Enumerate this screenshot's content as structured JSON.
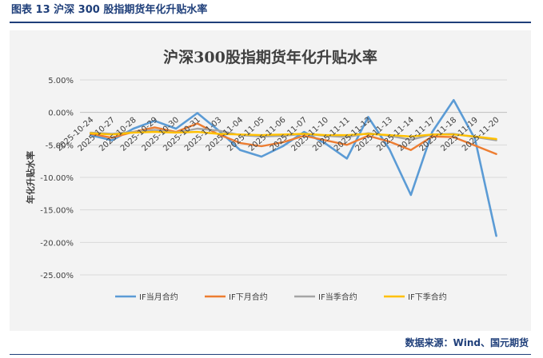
{
  "figure": {
    "caption": "图表 13  沪深 300 股指期货年化升贴水率",
    "source": "数据来源：Wind、国元期货"
  },
  "chart_data": {
    "type": "line",
    "title": "沪深300股指期货年化升贴水率",
    "xlabel": "",
    "ylabel": "年化升贴水率",
    "ylim": [
      -25,
      5
    ],
    "yticks": [
      5,
      0,
      -5,
      -10,
      -15,
      -20,
      -25
    ],
    "ytick_labels": [
      "5.00%",
      "0.00%",
      "-5.00%",
      "-10.00%",
      "-15.00%",
      "-20.00%",
      "-25.00%"
    ],
    "grid": true,
    "legend_position": "bottom",
    "categories": [
      "2025-10-24",
      "2025-10-27",
      "2025-10-28",
      "2025-10-29",
      "2025-10-30",
      "2025-10-31",
      "2025-11-03",
      "2025-11-04",
      "2025-11-05",
      "2025-11-06",
      "2025-11-07",
      "2025-11-10",
      "2025-11-11",
      "2025-11-12",
      "2025-11-13",
      "2025-11-14",
      "2025-11-17",
      "2025-11-18",
      "2025-11-19",
      "2025-11-20"
    ],
    "series": [
      {
        "name": "IF当月合约",
        "color": "#5b9bd5",
        "values": [
          -3.5,
          -4.3,
          -2.5,
          -1.3,
          -2.5,
          -0.1,
          -2.8,
          -5.8,
          -6.8,
          -5.2,
          -3.0,
          -4.8,
          -7.1,
          -0.7,
          -5.7,
          -12.7,
          -3.0,
          1.9,
          -4.1,
          -19.0
        ]
      },
      {
        "name": "IF下月合约",
        "color": "#ed7d31",
        "values": [
          -3.3,
          -3.9,
          -3.0,
          -2.3,
          -3.0,
          -1.7,
          -3.4,
          -4.7,
          -5.2,
          -4.6,
          -3.6,
          -4.3,
          -5.0,
          -3.6,
          -4.5,
          -5.8,
          -3.7,
          -3.8,
          -5.1,
          -6.4
        ]
      },
      {
        "name": "IF当季合约",
        "color": "#a5a5a5",
        "values": [
          -3.1,
          -3.3,
          -3.0,
          -2.7,
          -3.1,
          -2.5,
          -2.8,
          -3.5,
          -3.7,
          -3.6,
          -3.3,
          -3.6,
          -3.8,
          -3.2,
          -3.6,
          -4.2,
          -3.4,
          -3.3,
          -3.8,
          -4.3
        ]
      },
      {
        "name": "IF下季合约",
        "color": "#ffc000",
        "values": [
          -3.2,
          -3.4,
          -3.1,
          -3.0,
          -3.1,
          -3.0,
          -3.3,
          -3.4,
          -3.5,
          -3.4,
          -3.3,
          -3.5,
          -3.5,
          -3.3,
          -3.5,
          -3.7,
          -3.4,
          -3.4,
          -3.7,
          -4.1
        ]
      }
    ]
  }
}
